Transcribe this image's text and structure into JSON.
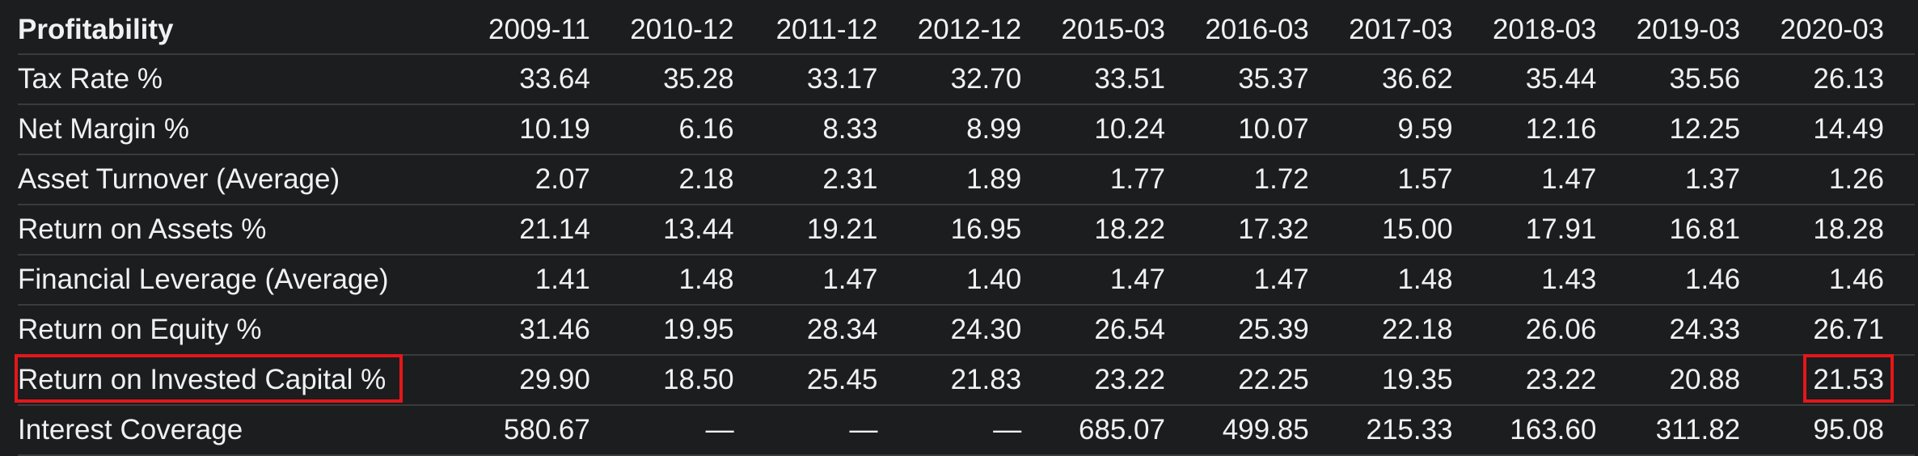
{
  "table": {
    "title": "Profitability",
    "columns": [
      "2009-11",
      "2010-12",
      "2011-12",
      "2012-12",
      "2015-03",
      "2016-03",
      "2017-03",
      "2018-03",
      "2019-03",
      "2020-03"
    ],
    "rows": [
      {
        "label": "Tax Rate %",
        "values": [
          "33.64",
          "35.28",
          "33.17",
          "32.70",
          "33.51",
          "35.37",
          "36.62",
          "35.44",
          "35.56",
          "26.13"
        ]
      },
      {
        "label": "Net Margin %",
        "values": [
          "10.19",
          "6.16",
          "8.33",
          "8.99",
          "10.24",
          "10.07",
          "9.59",
          "12.16",
          "12.25",
          "14.49"
        ]
      },
      {
        "label": "Asset Turnover (Average)",
        "values": [
          "2.07",
          "2.18",
          "2.31",
          "1.89",
          "1.77",
          "1.72",
          "1.57",
          "1.47",
          "1.37",
          "1.26"
        ]
      },
      {
        "label": "Return on Assets %",
        "values": [
          "21.14",
          "13.44",
          "19.21",
          "16.95",
          "18.22",
          "17.32",
          "15.00",
          "17.91",
          "16.81",
          "18.28"
        ]
      },
      {
        "label": "Financial Leverage (Average)",
        "values": [
          "1.41",
          "1.48",
          "1.47",
          "1.40",
          "1.47",
          "1.47",
          "1.48",
          "1.43",
          "1.46",
          "1.46"
        ]
      },
      {
        "label": "Return on Equity %",
        "values": [
          "31.46",
          "19.95",
          "28.34",
          "24.30",
          "26.54",
          "25.39",
          "22.18",
          "26.06",
          "24.33",
          "26.71"
        ]
      },
      {
        "label": "Return on Invested Capital %",
        "values": [
          "29.90",
          "18.50",
          "25.45",
          "21.83",
          "23.22",
          "22.25",
          "19.35",
          "23.22",
          "20.88",
          "21.53"
        ]
      },
      {
        "label": "Interest Coverage",
        "values": [
          "580.67",
          "—",
          "—",
          "—",
          "685.07",
          "499.85",
          "215.33",
          "163.60",
          "311.82",
          "95.08"
        ]
      }
    ]
  },
  "colors": {
    "background": "#1c1d1f",
    "text": "#f1f1f1",
    "divider": "#3a3b3d",
    "highlight": "#e3171a"
  }
}
